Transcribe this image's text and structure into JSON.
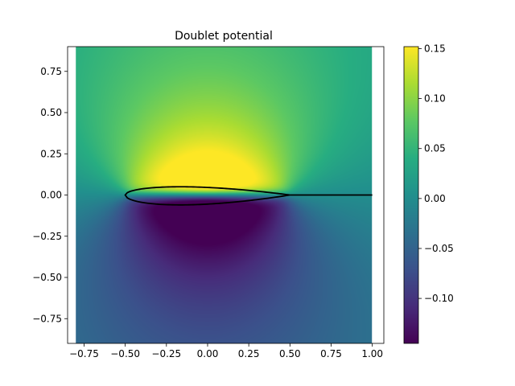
{
  "chart_data": {
    "type": "heatmap",
    "title": "Doublet potential",
    "xlabel": "",
    "ylabel": "",
    "xlim": [
      -0.85,
      1.07
    ],
    "ylim": [
      -0.9,
      0.9
    ],
    "field_extent": {
      "x": [
        -0.8,
        1.0
      ],
      "y": [
        -0.9,
        0.9
      ]
    },
    "x_ticks": [
      -0.75,
      -0.5,
      -0.25,
      0.0,
      0.25,
      0.5,
      0.75,
      1.0
    ],
    "x_tick_labels": [
      "−0.75",
      "−0.50",
      "−0.25",
      "0.00",
      "0.25",
      "0.50",
      "0.75",
      "1.00"
    ],
    "y_ticks": [
      0.75,
      0.5,
      0.25,
      0.0,
      -0.25,
      -0.5,
      -0.75
    ],
    "y_tick_labels": [
      "0.75",
      "0.50",
      "0.25",
      "0.00",
      "−0.25",
      "−0.50",
      "−0.75"
    ],
    "colormap": "viridis",
    "colorbar": {
      "range": [
        -0.145,
        0.152
      ],
      "ticks": [
        0.15,
        0.1,
        0.05,
        0.0,
        -0.05,
        -0.1
      ],
      "tick_labels": [
        "0.15",
        "0.10",
        "0.05",
        "0.00",
        "−0.05",
        "−0.10"
      ]
    },
    "airfoil": {
      "leading_edge_x": -0.5,
      "trailing_edge_x": 0.5,
      "max_upper_y": 0.05,
      "max_lower_y": -0.06
    },
    "wake_line": {
      "x": [
        0.5,
        1.0
      ],
      "y": [
        0.0,
        0.0
      ]
    },
    "grid": false
  }
}
